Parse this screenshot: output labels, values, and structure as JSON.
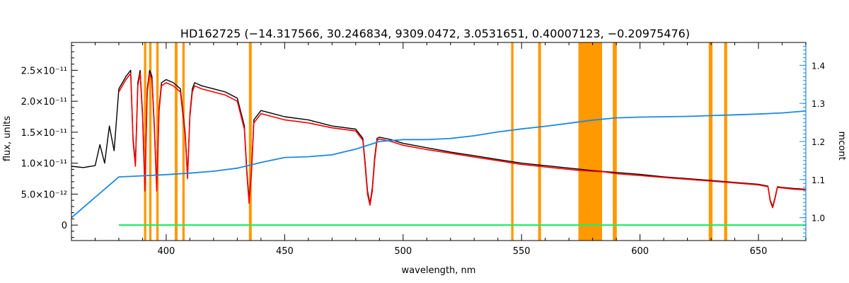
{
  "chart_data": {
    "type": "line",
    "title": "HD162725    (−14.317566, 30.246834, 9309.0472, 3.0531651, 0.40007123, −0.20975476)",
    "xlabel": "wavelength, nm",
    "ylabel": "flux, units",
    "ylabel_right": "mcont",
    "xlim": [
      360,
      670
    ],
    "ylim": [
      -2.5e-12,
      2.95e-11
    ],
    "ylim_right": [
      0.94,
      1.46
    ],
    "x_ticks": [
      "400",
      "450",
      "500",
      "550",
      "600",
      "650"
    ],
    "x_tick_values": [
      400,
      450,
      500,
      550,
      600,
      650
    ],
    "y_ticks": [
      "0",
      "5.0×10⁻¹²",
      "1.0×10⁻¹¹",
      "1.5×10⁻¹¹",
      "2.0×10⁻¹¹",
      "2.5×10⁻¹¹"
    ],
    "y_tick_values": [
      0,
      5e-12,
      1e-11,
      1.5e-11,
      2e-11,
      2.5e-11
    ],
    "y_ticks_right": [
      "1.0",
      "1.1",
      "1.2",
      "1.3",
      "1.4"
    ],
    "y_tick_values_right": [
      1.0,
      1.1,
      1.2,
      1.3,
      1.4
    ],
    "grid": false,
    "legend": "none",
    "colors": {
      "observed": "#000000",
      "model": "#ff0000",
      "interpolated": "#ffd700",
      "mcont": "#1e88e5",
      "residual": "#22ee66",
      "masked": "#ff9900",
      "right_axis": "#1e88e5"
    },
    "masked_regions": [
      [
        390.6,
        391.6
      ],
      [
        392.8,
        393.8
      ],
      [
        395.8,
        396.8
      ],
      [
        403.6,
        404.8
      ],
      [
        406.8,
        407.8
      ],
      [
        434.9,
        436.1
      ],
      [
        545.6,
        546.6
      ],
      [
        557.0,
        558.2
      ],
      [
        574.0,
        584.0
      ],
      [
        588.5,
        590.2
      ],
      [
        629.0,
        630.6
      ],
      [
        635.5,
        636.8
      ]
    ],
    "series": [
      {
        "role": "observed flux",
        "x": [
          360,
          365,
          370,
          372,
          374,
          376,
          378,
          380,
          383,
          385,
          386,
          387,
          388,
          389,
          390,
          391,
          392,
          393,
          394,
          395,
          396,
          397,
          398,
          400,
          403,
          406,
          408,
          409,
          410,
          411,
          412,
          415,
          420,
          425,
          430,
          433,
          434,
          435,
          436,
          437,
          440,
          445,
          450,
          460,
          470,
          480,
          483,
          484,
          485,
          486,
          487,
          488,
          489,
          490,
          495,
          500,
          510,
          520,
          530,
          540,
          550,
          560,
          570,
          580,
          590,
          600,
          610,
          620,
          630,
          640,
          650,
          654,
          655,
          656,
          657,
          658,
          660,
          665,
          670
        ],
        "y": [
          9.5e-12,
          9.3e-12,
          9.6e-12,
          1.3e-11,
          1e-11,
          1.6e-11,
          1.2e-11,
          2.2e-11,
          2.4e-11,
          2.5e-11,
          1.4e-11,
          1e-11,
          2.3e-11,
          2.5e-11,
          1.8e-11,
          6e-12,
          2.2e-11,
          2.5e-11,
          2.4e-11,
          1.6e-11,
          6e-12,
          1.9e-11,
          2.3e-11,
          2.35e-11,
          2.3e-11,
          2.2e-11,
          1.5e-11,
          8e-12,
          1.8e-11,
          2.2e-11,
          2.3e-11,
          2.25e-11,
          2.2e-11,
          2.15e-11,
          2.05e-11,
          1.6e-11,
          9e-12,
          4e-12,
          9e-12,
          1.7e-11,
          1.85e-11,
          1.8e-11,
          1.75e-11,
          1.7e-11,
          1.6e-11,
          1.55e-11,
          1.4e-11,
          1e-11,
          5.5e-12,
          3.5e-12,
          6e-12,
          1.1e-11,
          1.4e-11,
          1.42e-11,
          1.38e-11,
          1.32e-11,
          1.25e-11,
          1.18e-11,
          1.12e-11,
          1.06e-11,
          1e-11,
          9.6e-12,
          9.2e-12,
          8.8e-12,
          8.5e-12,
          8.2e-12,
          7.8e-12,
          7.5e-12,
          7.2e-12,
          6.9e-12,
          6.6e-12,
          6.3e-12,
          4e-12,
          3e-12,
          4.5e-12,
          6.2e-12,
          6.1e-12,
          5.9e-12,
          5.8e-12
        ]
      },
      {
        "role": "model fit",
        "x": [
          380,
          383,
          385,
          386,
          387,
          388,
          389,
          390,
          391,
          392,
          393,
          394,
          395,
          396,
          397,
          398,
          400,
          403,
          406,
          408,
          409,
          410,
          411,
          412,
          415,
          420,
          425,
          430,
          433,
          434,
          435,
          436,
          437,
          440,
          445,
          450,
          460,
          470,
          480,
          483,
          484,
          485,
          486,
          487,
          488,
          489,
          490,
          495,
          500,
          510,
          520,
          530,
          540,
          550,
          560,
          570,
          575,
          585,
          590,
          600,
          610,
          620,
          630,
          640,
          650,
          654,
          655,
          656,
          657,
          658,
          660,
          665,
          670
        ],
        "y": [
          2.15e-11,
          2.35e-11,
          2.45e-11,
          1.35e-11,
          9.5e-12,
          2.25e-11,
          2.45e-11,
          1.75e-11,
          5.5e-12,
          2.15e-11,
          2.45e-11,
          2.35e-11,
          1.55e-11,
          5.5e-12,
          1.85e-11,
          2.25e-11,
          2.3e-11,
          2.25e-11,
          2.15e-11,
          1.45e-11,
          7.5e-12,
          1.75e-11,
          2.15e-11,
          2.25e-11,
          2.2e-11,
          2.15e-11,
          2.1e-11,
          2e-11,
          1.55e-11,
          8.5e-12,
          3.5e-12,
          8.5e-12,
          1.65e-11,
          1.8e-11,
          1.75e-11,
          1.7e-11,
          1.65e-11,
          1.57e-11,
          1.52e-11,
          1.37e-11,
          9.5e-12,
          5e-12,
          3.2e-12,
          5.5e-12,
          1.05e-11,
          1.37e-11,
          1.39e-11,
          1.35e-11,
          1.29e-11,
          1.22e-11,
          1.16e-11,
          1.1e-11,
          1.04e-11,
          9.8e-12,
          9.4e-12,
          9e-12,
          8.8e-12,
          8.6e-12,
          8.3e-12,
          8e-12,
          7.7e-12,
          7.4e-12,
          7.1e-12,
          6.8e-12,
          6.5e-12,
          6.2e-12,
          3.8e-12,
          2.8e-12,
          4.3e-12,
          6.1e-12,
          6e-12,
          5.8e-12,
          5.7e-12
        ]
      },
      {
        "role": "mcont",
        "axis": "right",
        "x": [
          360,
          380,
          390,
          400,
          410,
          420,
          430,
          440,
          450,
          460,
          470,
          480,
          490,
          500,
          510,
          520,
          530,
          540,
          550,
          560,
          570,
          580,
          590,
          600,
          610,
          620,
          630,
          640,
          650,
          660,
          670
        ],
        "y": [
          1.0,
          1.107,
          1.11,
          1.113,
          1.117,
          1.122,
          1.13,
          1.145,
          1.158,
          1.16,
          1.165,
          1.18,
          1.2,
          1.205,
          1.205,
          1.208,
          1.215,
          1.225,
          1.233,
          1.24,
          1.248,
          1.256,
          1.262,
          1.264,
          1.265,
          1.266,
          1.268,
          1.27,
          1.272,
          1.275,
          1.28
        ]
      },
      {
        "role": "residual",
        "x": [
          380,
          385,
          390,
          392,
          395,
          400,
          405,
          410,
          415,
          420,
          430,
          440,
          450,
          460,
          470,
          480,
          490,
          500,
          510,
          520,
          530,
          540,
          560,
          570,
          574,
          584,
          590,
          600,
          610,
          620,
          630,
          640,
          650,
          660,
          670
        ],
        "y": [
          0,
          0,
          0,
          0,
          0,
          0,
          0,
          0,
          0,
          0,
          0,
          0,
          0,
          0,
          0,
          0,
          0,
          0,
          0,
          0,
          0,
          0,
          0,
          0,
          0,
          0,
          0,
          0,
          0,
          0,
          0,
          0,
          0,
          0,
          0
        ]
      }
    ]
  }
}
